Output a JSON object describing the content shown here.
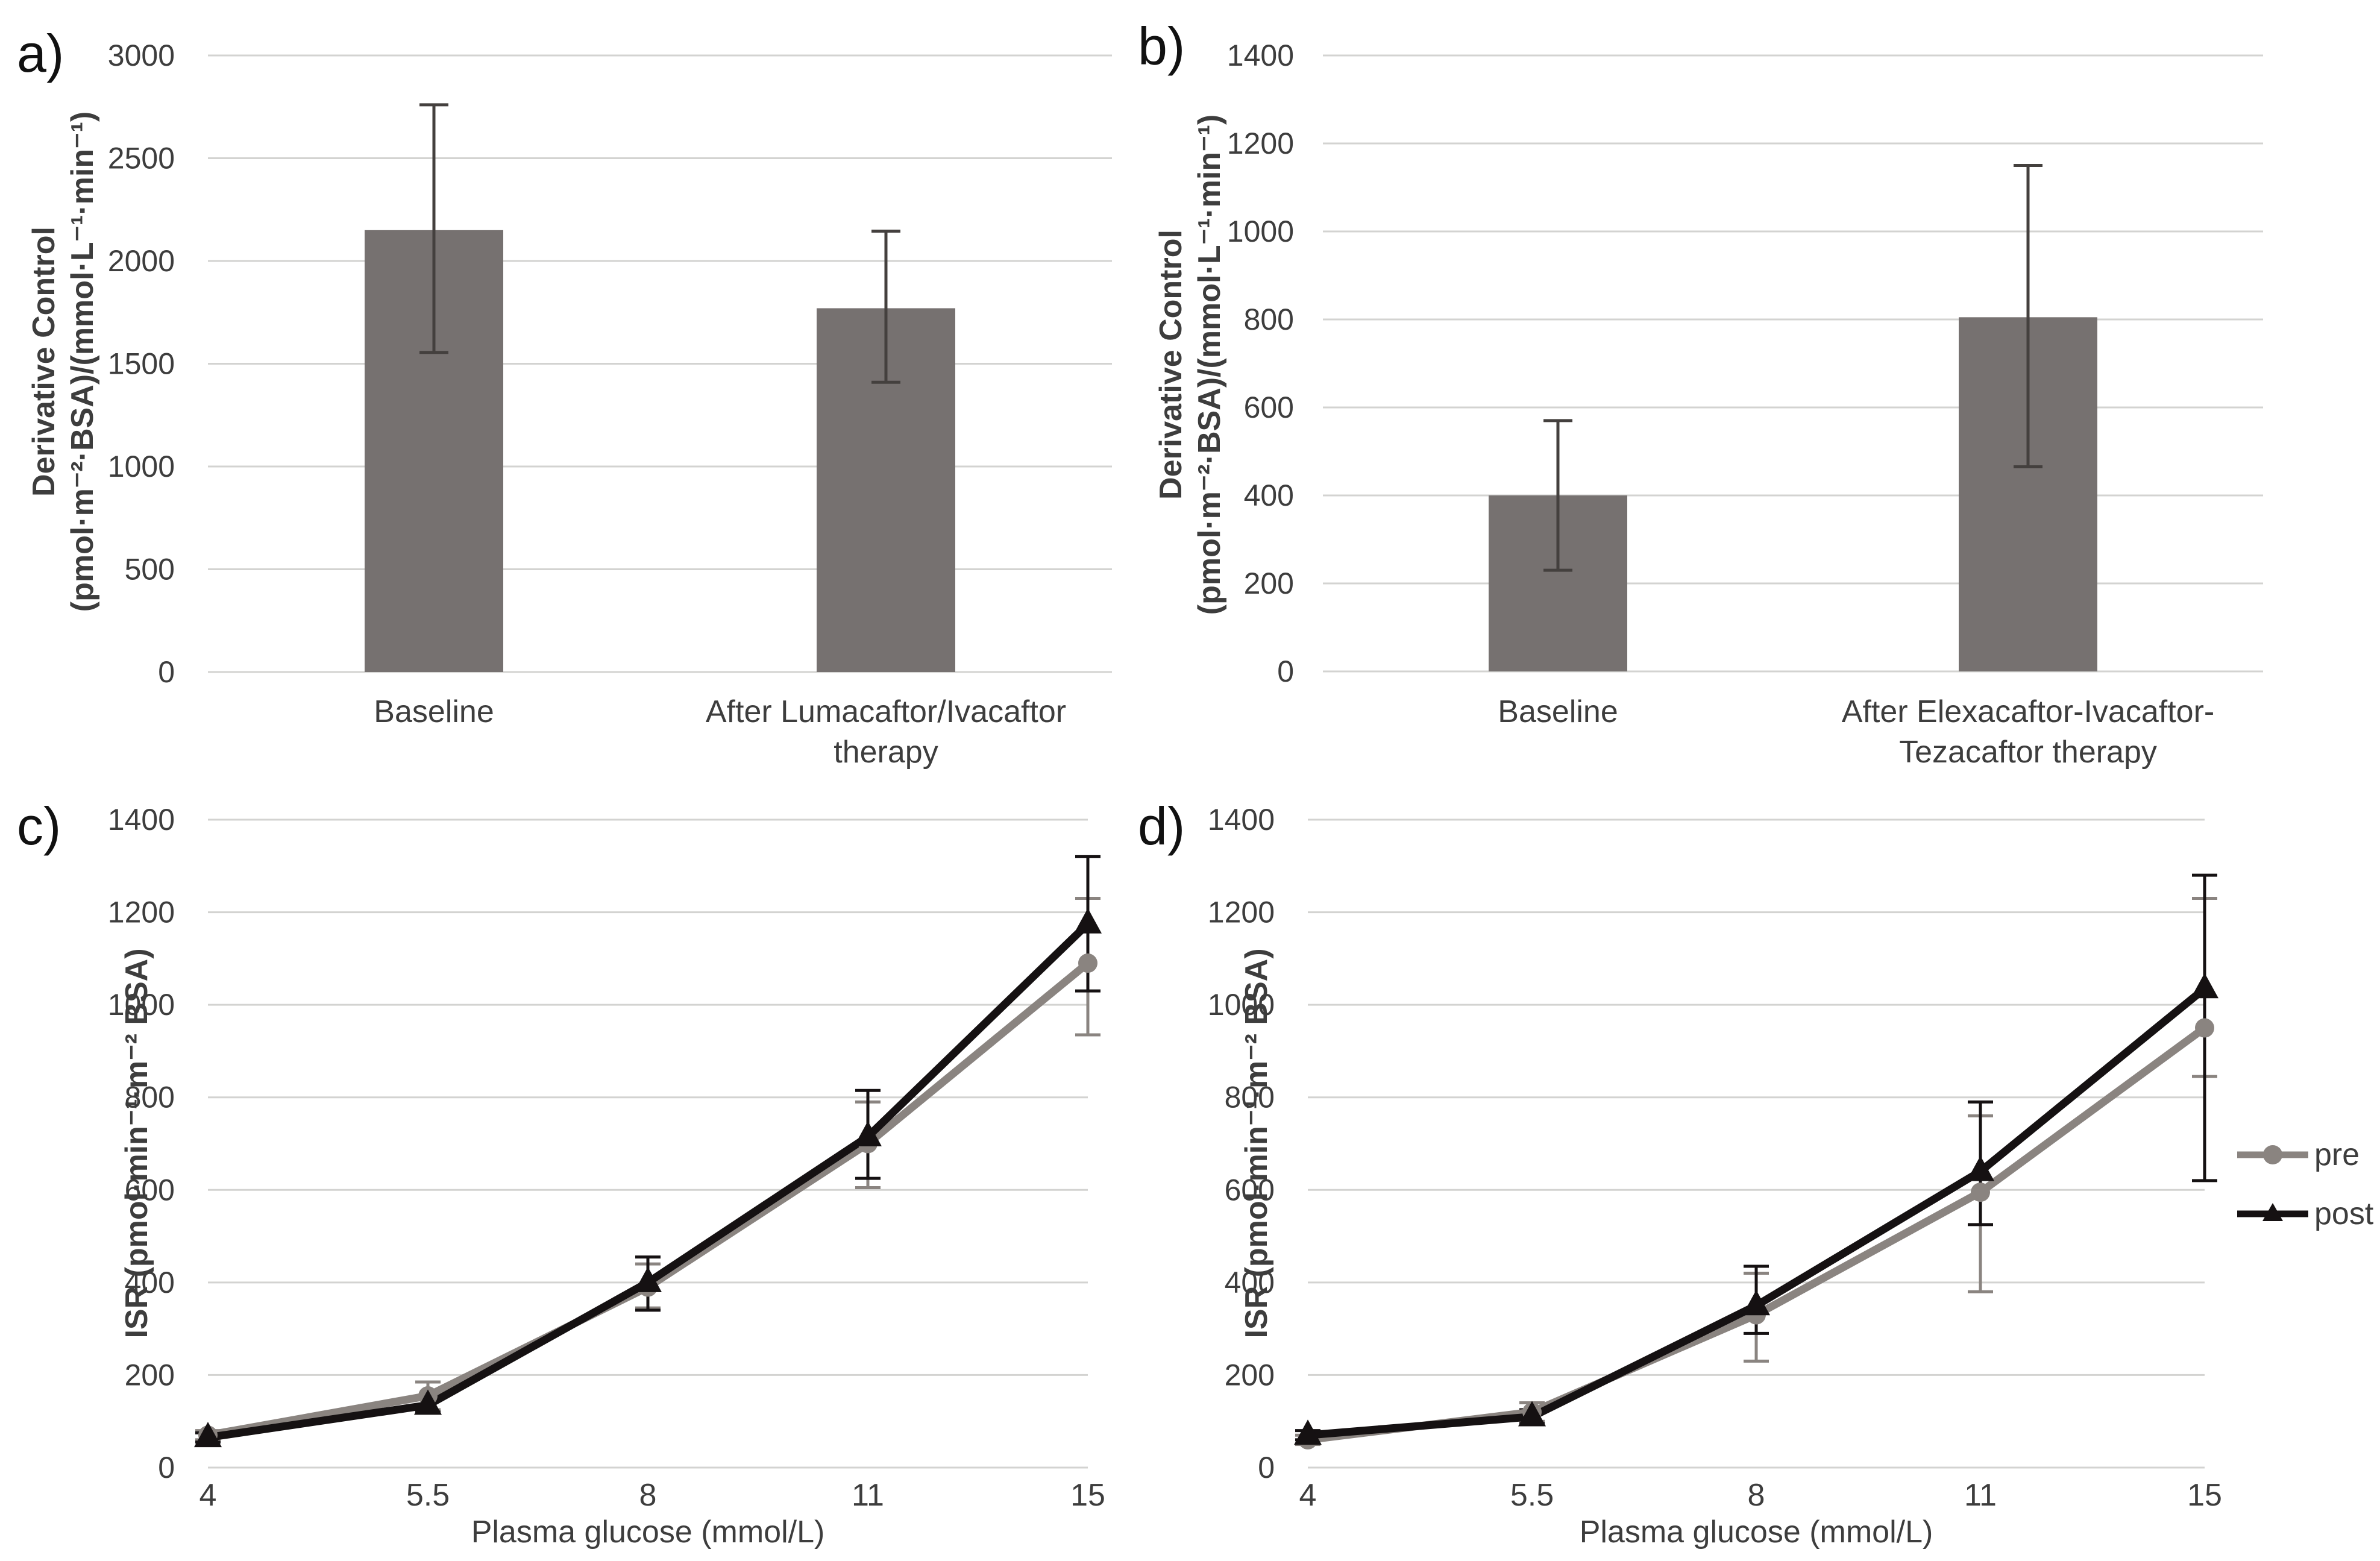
{
  "figure": {
    "background": "#ffffff",
    "text_color": "#3d3d3d",
    "grid_color": "#d3d3d1",
    "error_bar_color": "#44403e"
  },
  "legend": {
    "position": "right-of-panel-d",
    "entries": [
      {
        "label": "pre",
        "marker": "circle-line-icon",
        "color": "#8a8480"
      },
      {
        "label": "post",
        "marker": "triangle-line-icon",
        "color": "#151112"
      }
    ]
  },
  "chart_data": [
    {
      "id": "a",
      "panel_label": "a)",
      "type": "bar",
      "ylabel_lines": [
        "Derivative Control",
        "(pmol·m⁻²·BSA)/(mmol·L⁻¹·min⁻¹)"
      ],
      "xlabel": "",
      "categories": [
        "Baseline",
        "After Lumacaftor/Ivacaftor\ntherapy"
      ],
      "values": [
        2150,
        1770
      ],
      "err_low": [
        1555,
        1410
      ],
      "err_high": [
        2760,
        2145
      ],
      "ylim": [
        0,
        3000
      ],
      "ytick_step": 500,
      "grid": true,
      "bar_color": "#767170"
    },
    {
      "id": "b",
      "panel_label": "b)",
      "type": "bar",
      "ylabel_lines": [
        "Derivative Control",
        "(pmol·m⁻²·BSA)/(mmol·L⁻¹·min⁻¹)"
      ],
      "xlabel": "",
      "categories": [
        "Baseline",
        "After Elexacaftor-Ivacaftor-\nTezacaftor therapy"
      ],
      "values": [
        400,
        805
      ],
      "err_low": [
        230,
        465
      ],
      "err_high": [
        570,
        1150
      ],
      "ylim": [
        0,
        1400
      ],
      "ytick_step": 200,
      "grid": true,
      "bar_color": "#767170"
    },
    {
      "id": "c",
      "panel_label": "c)",
      "type": "line",
      "ylabel": "ISR (pmol·min⁻¹·m⁻² BSA)",
      "xlabel": "Plasma glucose (mmol/L)",
      "x_categories": [
        "4",
        "5.5",
        "8",
        "11",
        "15"
      ],
      "ylim": [
        0,
        1400
      ],
      "ytick_step": 200,
      "grid": true,
      "series": [
        {
          "name": "pre",
          "color": "#8a8480",
          "marker": "circle",
          "values": [
            70,
            155,
            390,
            700,
            1090
          ],
          "err_low": [
            60,
            125,
            345,
            605,
            935
          ],
          "err_high": [
            80,
            185,
            440,
            790,
            1230
          ]
        },
        {
          "name": "post",
          "color": "#151112",
          "marker": "triangle",
          "values": [
            65,
            135,
            400,
            715,
            1175
          ],
          "err_low": [
            55,
            120,
            340,
            625,
            1030
          ],
          "err_high": [
            75,
            150,
            455,
            815,
            1320
          ]
        }
      ]
    },
    {
      "id": "d",
      "panel_label": "d)",
      "type": "line",
      "ylabel": "ISR (pmol·min⁻¹·m⁻² BSA)",
      "xlabel": "Plasma glucose (mmol/L)",
      "x_categories": [
        "4",
        "5.5",
        "8",
        "11",
        "15"
      ],
      "ylim": [
        0,
        1400
      ],
      "ytick_step": 200,
      "grid": true,
      "series": [
        {
          "name": "pre",
          "color": "#8a8480",
          "marker": "circle",
          "values": [
            60,
            120,
            330,
            595,
            950
          ],
          "err_low": [
            50,
            100,
            230,
            380,
            845
          ],
          "err_high": [
            70,
            140,
            420,
            760,
            1230
          ]
        },
        {
          "name": "post",
          "color": "#151112",
          "marker": "triangle",
          "values": [
            70,
            110,
            350,
            640,
            1035
          ],
          "err_low": [
            60,
            95,
            290,
            525,
            620
          ],
          "err_high": [
            80,
            125,
            435,
            790,
            1280
          ]
        }
      ]
    }
  ]
}
